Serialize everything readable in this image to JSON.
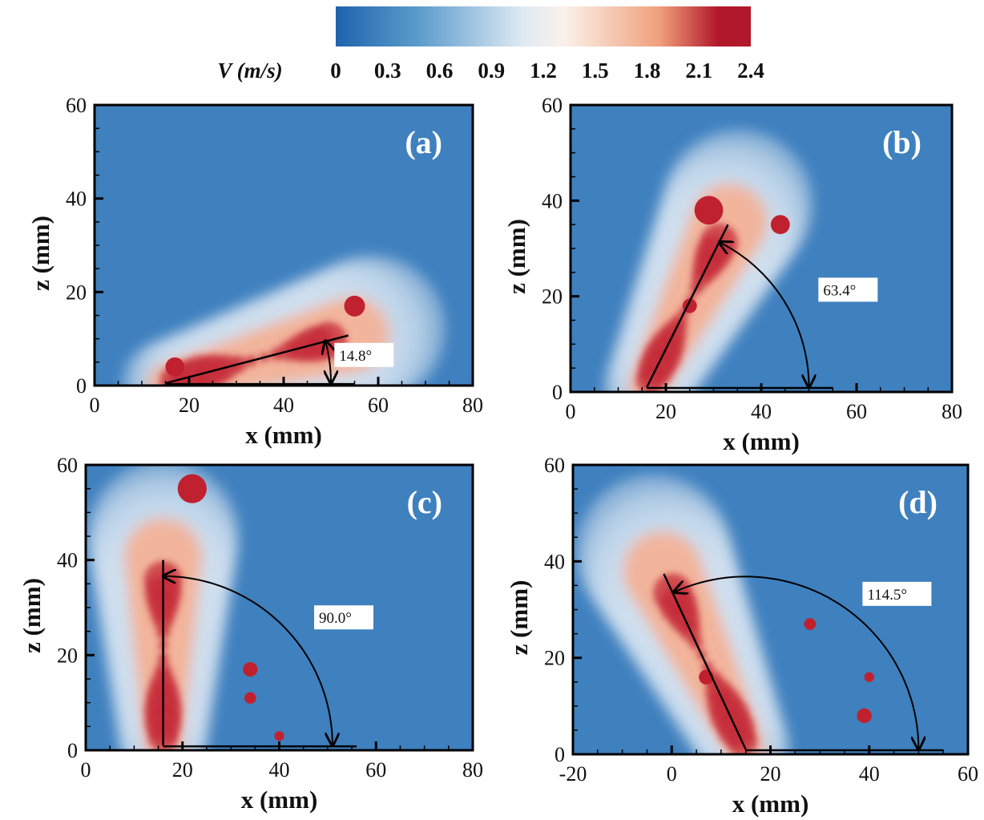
{
  "chart_data": {
    "type": "heatmap",
    "colorbar": {
      "label": "V (m/s)",
      "ticks": [
        "0",
        "0.3",
        "0.6",
        "0.9",
        "1.2",
        "1.5",
        "1.8",
        "2.1",
        "2.4"
      ],
      "range": [
        0,
        2.4
      ],
      "colors": [
        "#1f63ad",
        "#5c9ccc",
        "#dfeaf3",
        "#fbf1ea",
        "#f0a07c",
        "#b2182b",
        "#b2182b"
      ]
    },
    "panels": [
      {
        "label": "(a)",
        "xlabel": "x (mm)",
        "ylabel": "z (mm)",
        "xlim": [
          0,
          80
        ],
        "ylim": [
          0,
          60
        ],
        "xticks": [
          "0",
          "20",
          "40",
          "60",
          "80"
        ],
        "yticks": [
          "0",
          "20",
          "40",
          "60"
        ],
        "angle_deg": 14.8,
        "angle_text": "14.8°",
        "jet_origin": [
          15,
          0.5
        ],
        "jet_length": 40,
        "arc_radius": 35
      },
      {
        "label": "(b)",
        "xlabel": "x (mm)",
        "ylabel": "z (mm)",
        "xlim": [
          0,
          80
        ],
        "ylim": [
          0,
          60
        ],
        "xticks": [
          "0",
          "20",
          "40",
          "60",
          "80"
        ],
        "yticks": [
          "0",
          "20",
          "40",
          "60"
        ],
        "angle_deg": 63.4,
        "angle_text": "63.4°",
        "jet_origin": [
          16,
          1
        ],
        "jet_length": 38,
        "arc_radius": 34
      },
      {
        "label": "(c)",
        "xlabel": "x (mm)",
        "ylabel": "z (mm)",
        "xlim": [
          0,
          80
        ],
        "ylim": [
          0,
          60
        ],
        "xticks": [
          "0",
          "20",
          "40",
          "60",
          "80"
        ],
        "yticks": [
          "0",
          "20",
          "40",
          "60"
        ],
        "angle_deg": 90.0,
        "angle_text": "90.0°",
        "jet_origin": [
          16,
          1
        ],
        "jet_length": 39,
        "arc_radius": 35
      },
      {
        "label": "(d)",
        "xlabel": "x (mm)",
        "ylabel": "z (mm)",
        "xlim": [
          -20,
          60
        ],
        "ylim": [
          0,
          60
        ],
        "xticks": [
          "-20",
          "0",
          "20",
          "40",
          "60"
        ],
        "yticks": [
          "0",
          "20",
          "40",
          "60"
        ],
        "angle_deg": 114.5,
        "angle_text": "114.5°",
        "jet_origin": [
          15,
          1
        ],
        "jet_length": 40,
        "arc_radius": 35
      }
    ]
  }
}
